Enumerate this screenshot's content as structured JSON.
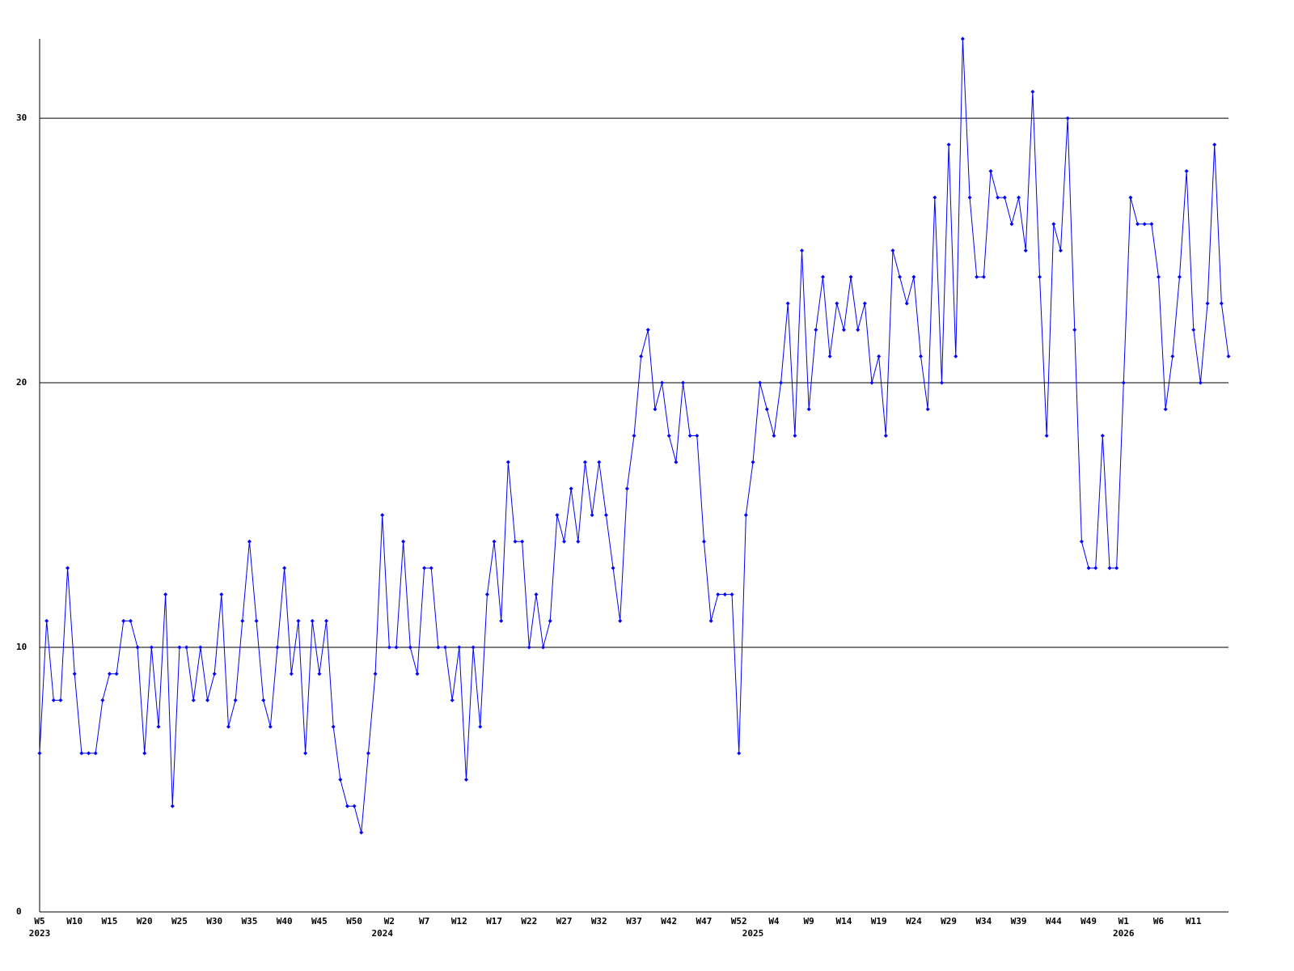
{
  "chart_data": {
    "type": "line",
    "categories": [
      "W5",
      null,
      null,
      null,
      null,
      "W10",
      null,
      null,
      null,
      null,
      "W15",
      null,
      null,
      null,
      null,
      "W20",
      null,
      null,
      null,
      null,
      "W25",
      null,
      null,
      null,
      null,
      "W30",
      null,
      null,
      null,
      null,
      "W35",
      null,
      null,
      null,
      null,
      "W40",
      null,
      null,
      null,
      null,
      "W45",
      null,
      null,
      null,
      null,
      "W50",
      null,
      null,
      null,
      null,
      "W2",
      null,
      null,
      null,
      null,
      "W7",
      null,
      null,
      null,
      null,
      "W12",
      null,
      null,
      null,
      null,
      "W17",
      null,
      null,
      null,
      null,
      "W22",
      null,
      null,
      null,
      null,
      "W27",
      null,
      null,
      null,
      null,
      "W32",
      null,
      null,
      null,
      null,
      "W37",
      null,
      null,
      null,
      null,
      "W42",
      null,
      null,
      null,
      null,
      "W47",
      null,
      null,
      null,
      null,
      "W52",
      null,
      null,
      null,
      null,
      "W4",
      null,
      null,
      null,
      null,
      "W9",
      null,
      null,
      null,
      null,
      "W14",
      null,
      null,
      null,
      null,
      "W19",
      null,
      null,
      null,
      null,
      "W24",
      null,
      null,
      null,
      null,
      "W29",
      null,
      null,
      null,
      null,
      "W34",
      null,
      null,
      null,
      null,
      "W39",
      null,
      null,
      null,
      null,
      "W44",
      null,
      null,
      null,
      null,
      "W49",
      null,
      null,
      null,
      null,
      "W1",
      null,
      null,
      null,
      null,
      "W6",
      null,
      null,
      null,
      null,
      "W11",
      null,
      null,
      null,
      null,
      null
    ],
    "years": [
      "2023",
      null,
      null,
      null,
      null,
      null,
      null,
      null,
      null,
      null,
      null,
      null,
      null,
      null,
      null,
      null,
      null,
      null,
      null,
      null,
      null,
      null,
      null,
      null,
      null,
      null,
      null,
      null,
      null,
      null,
      null,
      null,
      null,
      null,
      null,
      null,
      null,
      null,
      null,
      null,
      null,
      null,
      null,
      null,
      null,
      null,
      null,
      null,
      null,
      "2024",
      null,
      null,
      null,
      null,
      null,
      null,
      null,
      null,
      null,
      null,
      null,
      null,
      null,
      null,
      null,
      null,
      null,
      null,
      null,
      null,
      null,
      null,
      null,
      null,
      null,
      null,
      null,
      null,
      null,
      null,
      null,
      null,
      null,
      null,
      null,
      null,
      null,
      null,
      null,
      null,
      null,
      null,
      null,
      null,
      null,
      null,
      null,
      null,
      null,
      null,
      null,
      null,
      "2025",
      null,
      null,
      null,
      null,
      null,
      null,
      null,
      null,
      null,
      null,
      null,
      null,
      null,
      null,
      null,
      null,
      null,
      null,
      null,
      null,
      null,
      null,
      null,
      null,
      null,
      null,
      null,
      null,
      null,
      null,
      null,
      null,
      null,
      null,
      null,
      null,
      null,
      null,
      null,
      null,
      null,
      null,
      null,
      null,
      null,
      null,
      null,
      null,
      null,
      null,
      null,
      null,
      "2026",
      null,
      null,
      null,
      null,
      null,
      null,
      null,
      null,
      null,
      null,
      null,
      null,
      null,
      null,
      null
    ],
    "series": [
      {
        "color": "#0000ff",
        "values": [
          6,
          11,
          8,
          8,
          13,
          9,
          6,
          6,
          6,
          8,
          9,
          9,
          11,
          11,
          10,
          6,
          10,
          7,
          12,
          4,
          10,
          10,
          8,
          10,
          8,
          9,
          12,
          7,
          8,
          11,
          14,
          11,
          8,
          7,
          10,
          13,
          9,
          11,
          6,
          11,
          9,
          11,
          7,
          5,
          4,
          4,
          3,
          6,
          9,
          15,
          10,
          10,
          14,
          10,
          9,
          13,
          13,
          10,
          10,
          8,
          10,
          5,
          10,
          7,
          12,
          14,
          11,
          17,
          14,
          14,
          10,
          12,
          10,
          11,
          15,
          14,
          16,
          14,
          17,
          15,
          17,
          15,
          13,
          11,
          16,
          18,
          21,
          22,
          19,
          20,
          18,
          17,
          20,
          18,
          18,
          14,
          11,
          12,
          12,
          12,
          6,
          15,
          17,
          20,
          19,
          18,
          20,
          23,
          18,
          25,
          19,
          22,
          24,
          21,
          23,
          22,
          24,
          22,
          23,
          20,
          21,
          18,
          25,
          24,
          23,
          24,
          21,
          19,
          27,
          20,
          29,
          21,
          33,
          27,
          24,
          24,
          28,
          27,
          27,
          26,
          27,
          25,
          31,
          24,
          18,
          26,
          25,
          30,
          22,
          14,
          13,
          13,
          18,
          13,
          13,
          20,
          27,
          26,
          26,
          26,
          24,
          19,
          21,
          24,
          28,
          22,
          20,
          23,
          29,
          23,
          21
        ]
      }
    ],
    "ylim": [
      0,
      33
    ],
    "yticks": [
      0,
      10,
      20,
      30
    ],
    "grid": true
  }
}
